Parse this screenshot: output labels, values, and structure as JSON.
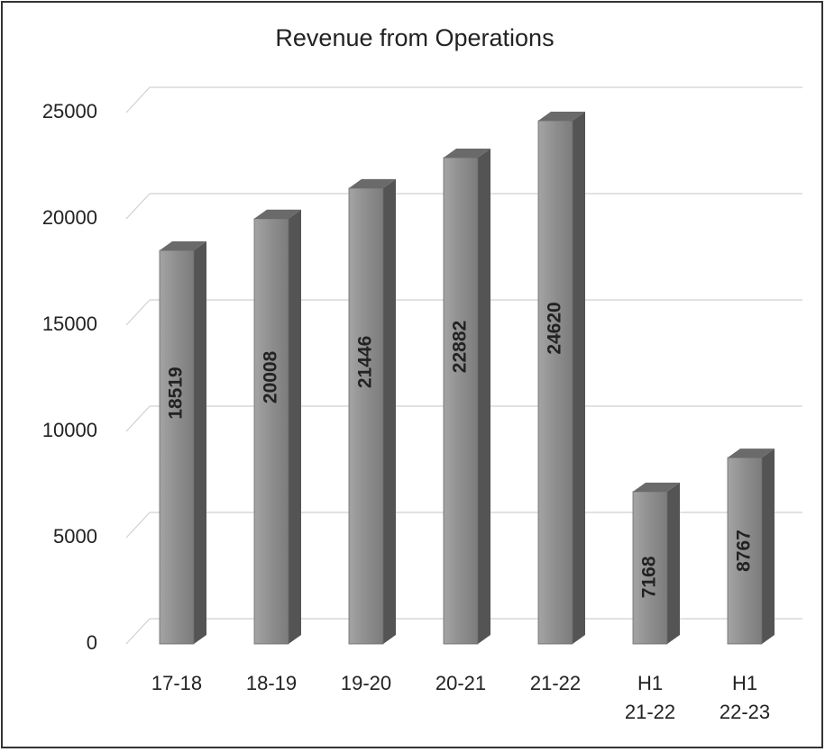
{
  "chart_data": {
    "type": "bar3d",
    "title": "Revenue from Operations",
    "categories": [
      "17-18",
      "18-19",
      "19-20",
      "20-21",
      "21-22",
      "H1\n21-22",
      "H1\n22-23"
    ],
    "values": [
      18519,
      20008,
      21446,
      22882,
      24620,
      7168,
      8767
    ],
    "color": "#8e8e8e",
    "ylim": [
      0,
      25000
    ],
    "yticks": [
      0,
      5000,
      10000,
      15000,
      20000,
      25000
    ],
    "grid": true
  }
}
